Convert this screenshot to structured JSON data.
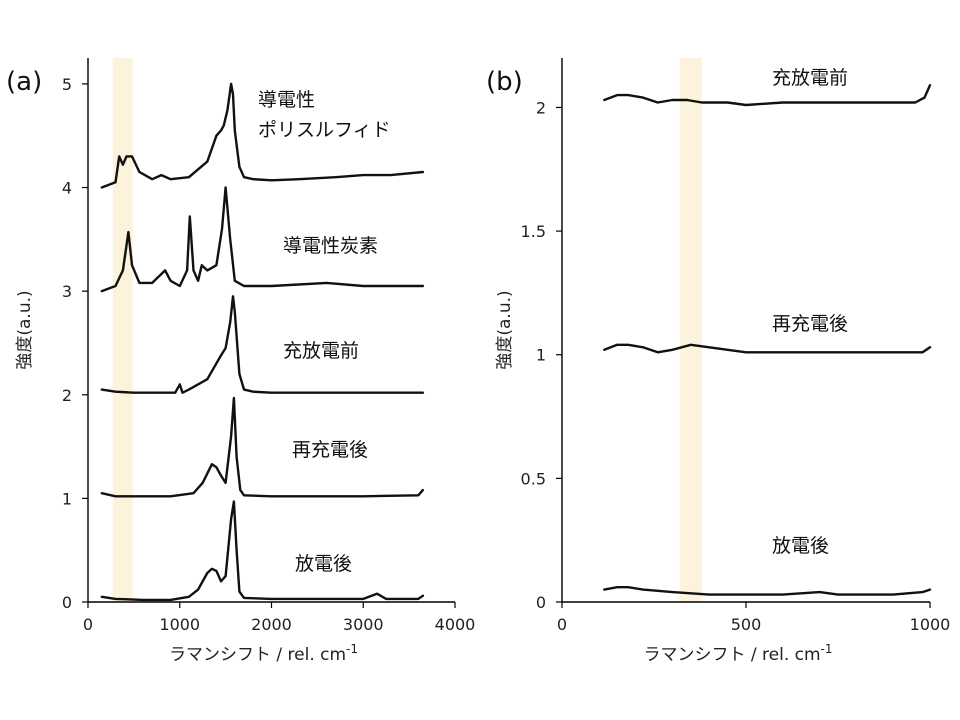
{
  "colors": {
    "highlight_band": "#fdf3dc",
    "trace": "#111111",
    "axis": "#000000"
  },
  "chart_data": [
    {
      "panel": "(a)",
      "type": "line",
      "xlabel": "ラマンシフト / rel. cm-1",
      "ylabel": "強度(a.u.)",
      "xlim": [
        0,
        4000
      ],
      "ylim": [
        0,
        5.25
      ],
      "xticks": [
        0,
        1000,
        2000,
        3000,
        4000
      ],
      "yticks": [
        0,
        1,
        2,
        3,
        4,
        5
      ],
      "highlight_band": [
        270,
        490
      ],
      "series": [
        {
          "name": "導電性\nポリスルフィド",
          "label_lines": [
            "導電性",
            "ポリスルフィド"
          ],
          "x": [
            150,
            300,
            340,
            380,
            420,
            480,
            560,
            700,
            800,
            900,
            1100,
            1300,
            1400,
            1450,
            1480,
            1520,
            1560,
            1580,
            1600,
            1650,
            1700,
            1800,
            2000,
            2300,
            2700,
            3000,
            3300,
            3650
          ],
          "y": [
            4.0,
            4.05,
            4.3,
            4.22,
            4.3,
            4.3,
            4.15,
            4.08,
            4.12,
            4.08,
            4.1,
            4.25,
            4.5,
            4.55,
            4.6,
            4.75,
            5.0,
            4.9,
            4.55,
            4.2,
            4.1,
            4.08,
            4.07,
            4.08,
            4.1,
            4.12,
            4.12,
            4.15
          ]
        },
        {
          "name": "導電性炭素",
          "label_lines": [
            "導電性炭素"
          ],
          "x": [
            150,
            300,
            380,
            440,
            480,
            560,
            700,
            840,
            900,
            1000,
            1080,
            1110,
            1150,
            1200,
            1240,
            1300,
            1400,
            1460,
            1500,
            1550,
            1600,
            1700,
            2000,
            2600,
            3000,
            3300,
            3650
          ],
          "y": [
            3.0,
            3.05,
            3.2,
            3.57,
            3.25,
            3.08,
            3.08,
            3.2,
            3.1,
            3.05,
            3.2,
            3.72,
            3.2,
            3.1,
            3.25,
            3.2,
            3.25,
            3.6,
            4.0,
            3.5,
            3.1,
            3.05,
            3.05,
            3.08,
            3.05,
            3.05,
            3.05
          ]
        },
        {
          "name": "充放電前",
          "label_lines": [
            "充放電前"
          ],
          "x": [
            150,
            300,
            500,
            800,
            950,
            1000,
            1030,
            1100,
            1300,
            1450,
            1500,
            1550,
            1580,
            1600,
            1650,
            1700,
            1800,
            2000,
            2600,
            3000,
            3650
          ],
          "y": [
            2.05,
            2.03,
            2.02,
            2.02,
            2.02,
            2.1,
            2.02,
            2.05,
            2.15,
            2.38,
            2.45,
            2.7,
            2.95,
            2.8,
            2.2,
            2.05,
            2.03,
            2.02,
            2.02,
            2.02,
            2.02
          ]
        },
        {
          "name": "再充電後",
          "label_lines": [
            "再充電後"
          ],
          "x": [
            150,
            300,
            500,
            900,
            1150,
            1250,
            1350,
            1400,
            1450,
            1500,
            1560,
            1590,
            1620,
            1660,
            1700,
            2000,
            3000,
            3600,
            3650
          ],
          "y": [
            1.05,
            1.02,
            1.02,
            1.02,
            1.05,
            1.15,
            1.33,
            1.3,
            1.22,
            1.15,
            1.6,
            1.97,
            1.4,
            1.08,
            1.03,
            1.02,
            1.02,
            1.03,
            1.08
          ]
        },
        {
          "name": "放電後",
          "label_lines": [
            "放電後"
          ],
          "x": [
            150,
            300,
            600,
            900,
            1100,
            1200,
            1300,
            1350,
            1400,
            1450,
            1500,
            1560,
            1590,
            1620,
            1650,
            1700,
            2000,
            3000,
            3150,
            3250,
            3600,
            3650
          ],
          "y": [
            0.05,
            0.03,
            0.02,
            0.02,
            0.05,
            0.12,
            0.28,
            0.32,
            0.3,
            0.2,
            0.25,
            0.8,
            0.97,
            0.5,
            0.1,
            0.04,
            0.03,
            0.03,
            0.08,
            0.03,
            0.03,
            0.06
          ]
        }
      ]
    },
    {
      "panel": "(b)",
      "type": "line",
      "xlabel": "ラマンシフト / rel. cm-1",
      "ylabel": "強度(a.u.)",
      "xlim": [
        0,
        1000
      ],
      "ylim": [
        0,
        2.2
      ],
      "xticks": [
        0,
        500,
        1000
      ],
      "yticks": [
        0,
        0.5,
        1,
        1.5,
        2
      ],
      "highlight_band": [
        320,
        380
      ],
      "series": [
        {
          "name": "充放電前",
          "label_lines": [
            "充放電前"
          ],
          "x": [
            115,
            150,
            180,
            220,
            260,
            300,
            340,
            380,
            450,
            500,
            600,
            700,
            800,
            900,
            960,
            985,
            1000
          ],
          "y": [
            2.03,
            2.05,
            2.05,
            2.04,
            2.02,
            2.03,
            2.03,
            2.02,
            2.02,
            2.01,
            2.02,
            2.02,
            2.02,
            2.02,
            2.02,
            2.04,
            2.09
          ]
        },
        {
          "name": "再充電後",
          "label_lines": [
            "再充電後"
          ],
          "x": [
            115,
            150,
            180,
            220,
            260,
            300,
            350,
            400,
            500,
            600,
            700,
            800,
            900,
            980,
            1000
          ],
          "y": [
            1.02,
            1.04,
            1.04,
            1.03,
            1.01,
            1.02,
            1.04,
            1.03,
            1.01,
            1.01,
            1.01,
            1.01,
            1.01,
            1.01,
            1.03
          ]
        },
        {
          "name": "放電後",
          "label_lines": [
            "放電後"
          ],
          "x": [
            115,
            150,
            180,
            220,
            300,
            400,
            500,
            600,
            700,
            750,
            800,
            900,
            980,
            1000
          ],
          "y": [
            0.05,
            0.06,
            0.06,
            0.05,
            0.04,
            0.03,
            0.03,
            0.03,
            0.04,
            0.03,
            0.03,
            0.03,
            0.04,
            0.05
          ]
        }
      ]
    }
  ]
}
